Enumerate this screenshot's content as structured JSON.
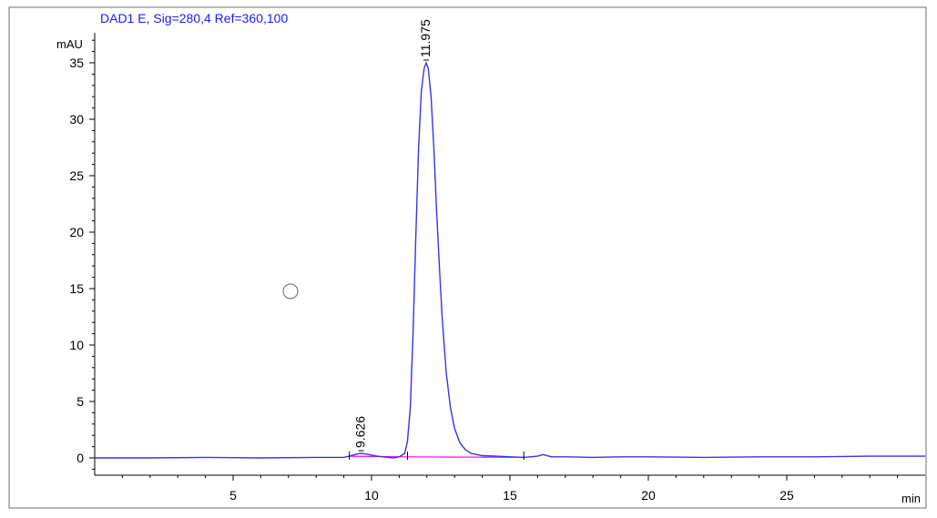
{
  "chart_data": {
    "type": "line",
    "title": "DAD1 E, Sig=280,4 Ref=360,100",
    "ylabel": "mAU",
    "xlabel": "min",
    "xlim": [
      0,
      30
    ],
    "ylim": [
      -1.5,
      37.5
    ],
    "x_ticks": [
      5,
      10,
      15,
      20,
      25
    ],
    "y_ticks": [
      0,
      5,
      10,
      15,
      20,
      25,
      30,
      35
    ],
    "series": [
      {
        "x": [
          0,
          2,
          4,
          6,
          8,
          9.0,
          9.2,
          9.4,
          9.6,
          9.8,
          10.0,
          10.2,
          10.4,
          10.6,
          10.8,
          11.0,
          11.2,
          11.3,
          11.4,
          11.5,
          11.6,
          11.7,
          11.8,
          11.9,
          11.975,
          12.05,
          12.15,
          12.25,
          12.35,
          12.45,
          12.55,
          12.7,
          12.85,
          13.0,
          13.2,
          13.4,
          13.6,
          13.8,
          14.0,
          14.5,
          15.0,
          15.5,
          16.0,
          16.2,
          16.5,
          17,
          18,
          19,
          20,
          22,
          24,
          26,
          28,
          30
        ],
        "y": [
          0.0,
          0.0,
          0.05,
          0.0,
          0.05,
          0.05,
          0.15,
          0.3,
          0.4,
          0.35,
          0.25,
          0.15,
          0.1,
          0.05,
          0.0,
          0.1,
          0.4,
          1.5,
          4.5,
          11.0,
          19.5,
          27.5,
          32.5,
          34.5,
          35.0,
          34.5,
          32.0,
          27.5,
          22.0,
          17.0,
          12.5,
          7.5,
          4.5,
          2.6,
          1.3,
          0.7,
          0.4,
          0.3,
          0.2,
          0.15,
          0.1,
          0.05,
          0.15,
          0.3,
          0.1,
          0.1,
          0.05,
          0.1,
          0.1,
          0.05,
          0.1,
          0.1,
          0.15,
          0.15
        ]
      }
    ],
    "baselines": [
      {
        "x": [
          9.2,
          11.3
        ],
        "y": [
          0.15,
          0.1
        ]
      },
      {
        "x": [
          11.3,
          15.5
        ],
        "y": [
          0.1,
          0.05
        ]
      }
    ],
    "peaks": [
      {
        "label": "9.626",
        "rt": 9.626,
        "y": 0.4
      },
      {
        "label": "11.975",
        "rt": 11.975,
        "y": 35.0
      }
    ],
    "integration_marks": [
      9.2,
      11.3,
      15.5
    ]
  }
}
